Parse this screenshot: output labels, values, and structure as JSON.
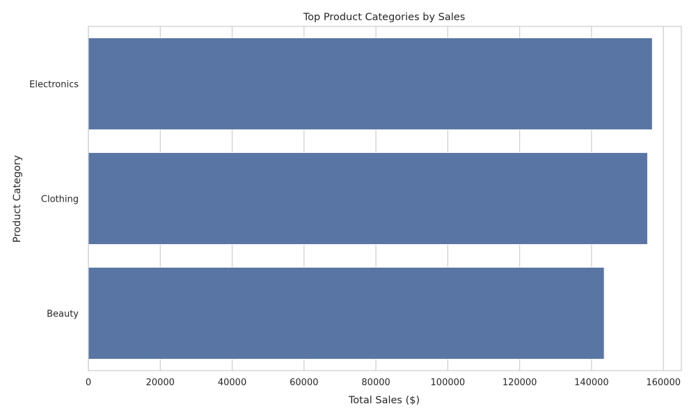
{
  "chart_data": {
    "type": "bar",
    "orientation": "horizontal",
    "title": "Top Product Categories by Sales",
    "xlabel": "Total Sales ($)",
    "ylabel": "Product Category",
    "categories": [
      "Electronics",
      "Clothing",
      "Beauty"
    ],
    "values": [
      156905,
      155580,
      143515
    ],
    "xlim": [
      0,
      165000
    ],
    "xticks": [
      0,
      20000,
      40000,
      60000,
      80000,
      100000,
      120000,
      140000,
      160000
    ],
    "xtick_labels": [
      "0",
      "20000",
      "40000",
      "60000",
      "80000",
      "100000",
      "120000",
      "140000",
      "160000"
    ],
    "grid": true,
    "legend": "none",
    "colors": {
      "bar": "#5975a4",
      "bar_edge": "#ffffff",
      "grid": "#cccccc",
      "spine": "#cccccc",
      "text": "#262626"
    }
  }
}
